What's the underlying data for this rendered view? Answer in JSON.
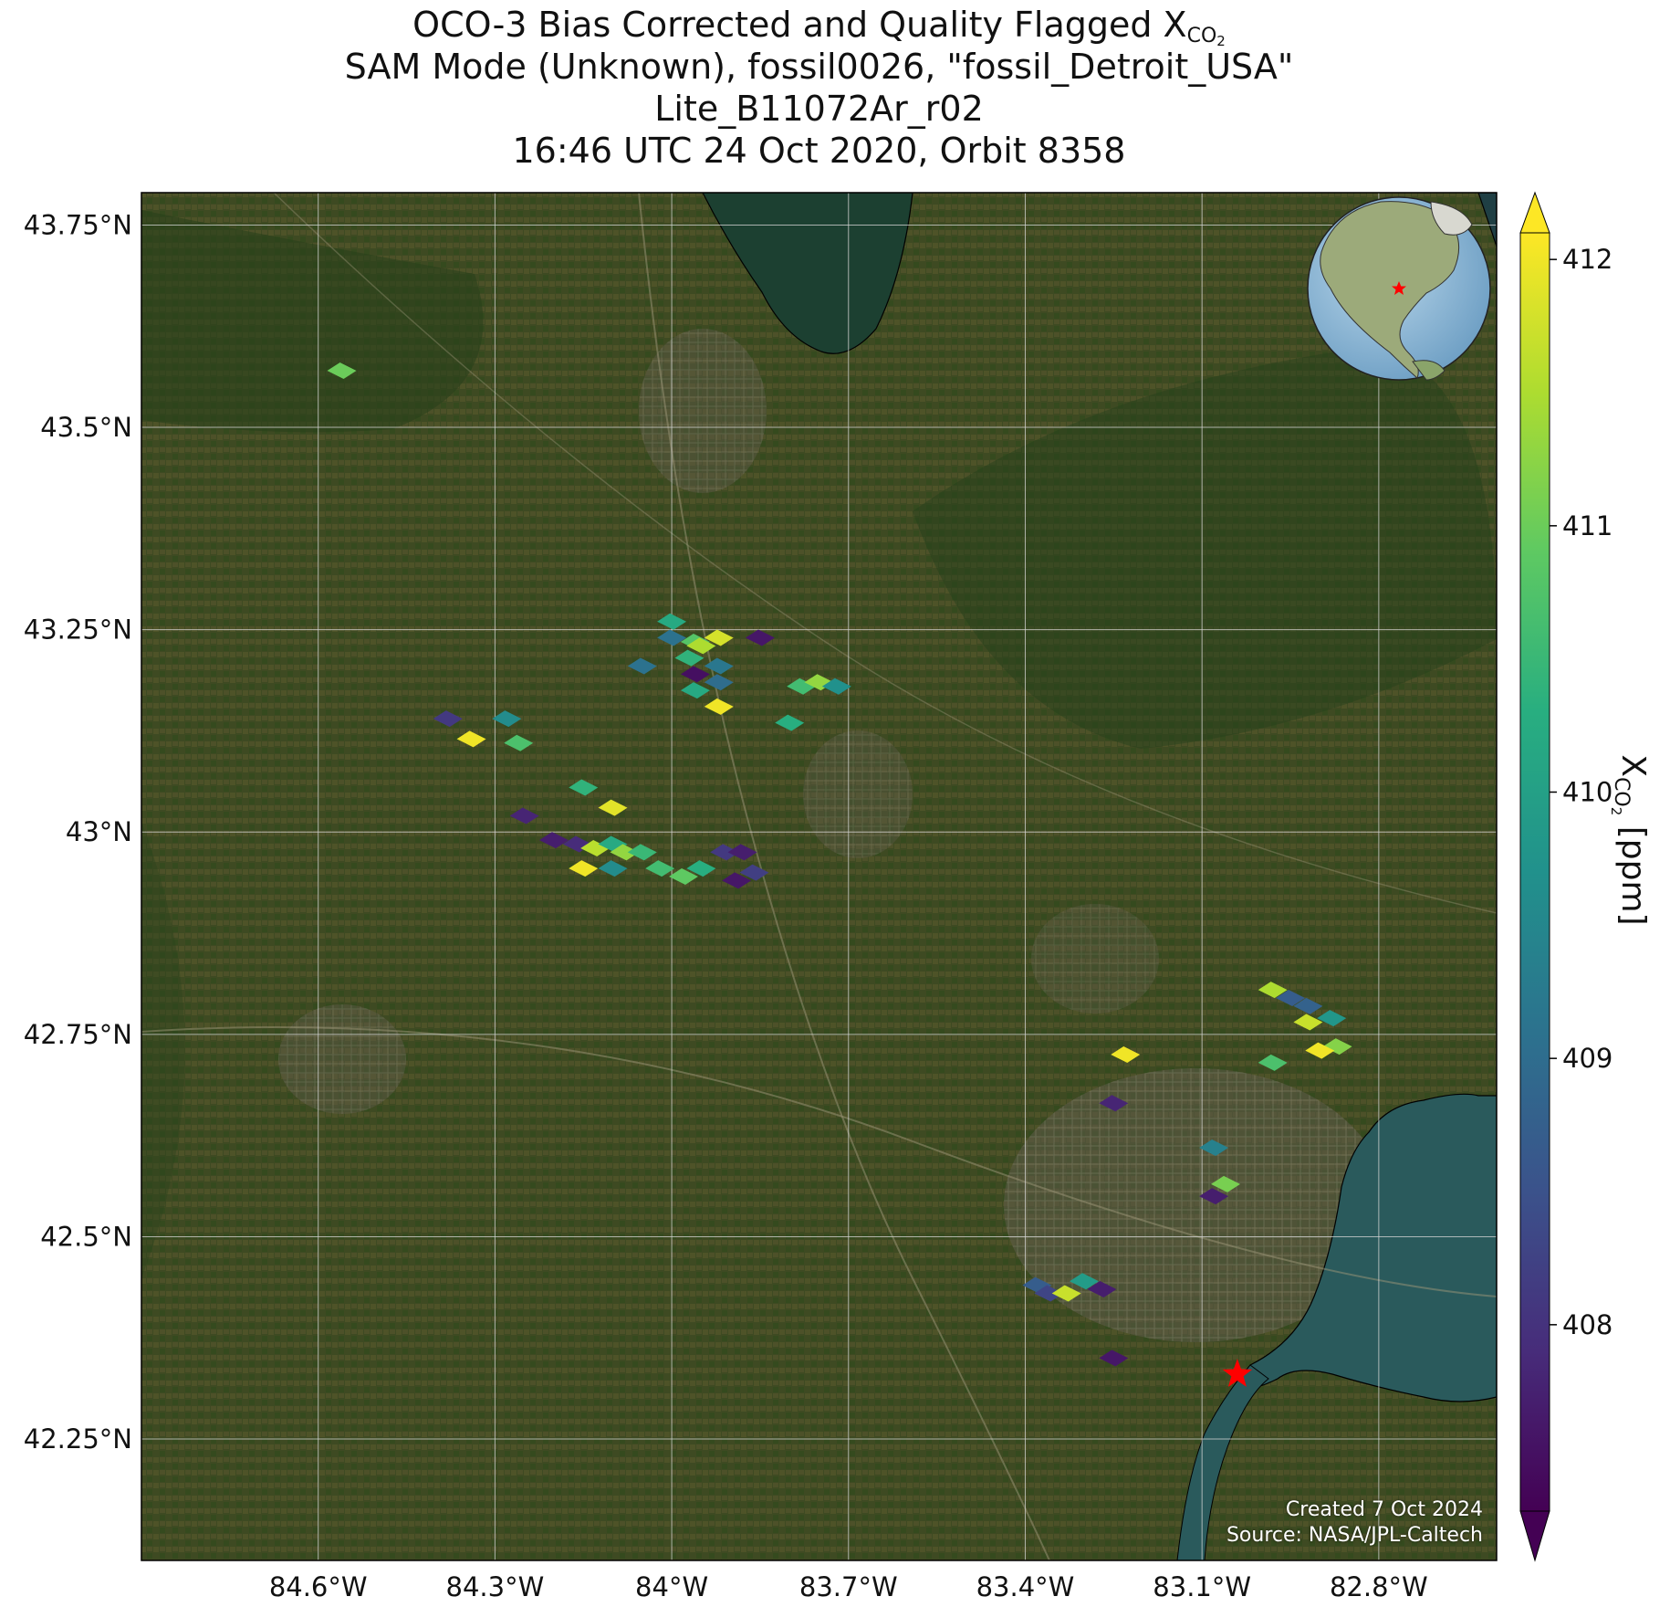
{
  "title": {
    "line1_prefix": "OCO-3 Bias Corrected and Quality Flagged X",
    "line1_sub": "CO",
    "line1_sub2": "2",
    "line2": "SAM Mode (Unknown), fossil0026, \"fossil_Detroit_USA\"",
    "line3": "Lite_B11072Ar_r02",
    "line4": "16:46 UTC 24 Oct 2020, Orbit 8358"
  },
  "colorbar": {
    "label_prefix": "X",
    "label_sub": "CO",
    "label_sub2": "2",
    "label_suffix": " [ppm]",
    "ticks": [
      "412",
      "411",
      "410",
      "409",
      "408"
    ],
    "min": 407.3,
    "max": 412.1,
    "colormap": "viridis",
    "extend": "both"
  },
  "footer": {
    "created": "Created 7 Oct 2024",
    "source": "Source: NASA/JPL-Caltech"
  },
  "axes": {
    "lat_ticks": [
      "43.75°N",
      "43.5°N",
      "43.25°N",
      "43°N",
      "42.75°N",
      "42.5°N",
      "42.25°N"
    ],
    "lon_ticks": [
      "84.6°W",
      "84.3°W",
      "84°W",
      "83.7°W",
      "83.4°W",
      "83.1°W",
      "82.8°W"
    ],
    "lat_values": [
      43.75,
      43.5,
      43.25,
      43.0,
      42.75,
      42.5,
      42.25
    ],
    "lon_values": [
      -84.6,
      -84.3,
      -84.0,
      -83.7,
      -83.4,
      -83.1,
      -82.8
    ],
    "lat_range": [
      42.1,
      43.79
    ],
    "lon_range": [
      -84.9,
      -82.6
    ]
  },
  "target": {
    "lat": 42.33,
    "lon": -83.04,
    "marker": "red-star"
  },
  "colors": {
    "map_land": "#3e4a22",
    "water_lake": "#1c4031",
    "water_erie": "#2a5a5c",
    "gridline": "#d8d8d8",
    "target_star": "#ff0000"
  },
  "soundings": [
    {
      "lat": 43.57,
      "lon": -84.56,
      "xco2": 411.0
    },
    {
      "lat": 43.26,
      "lon": -84.0,
      "xco2": 410.2
    },
    {
      "lat": 43.24,
      "lon": -84.0,
      "xco2": 409.1
    },
    {
      "lat": 43.235,
      "lon": -83.96,
      "xco2": 410.8
    },
    {
      "lat": 43.24,
      "lon": -83.92,
      "xco2": 411.8
    },
    {
      "lat": 43.23,
      "lon": -83.95,
      "xco2": 411.5
    },
    {
      "lat": 43.215,
      "lon": -83.97,
      "xco2": 410.4
    },
    {
      "lat": 43.24,
      "lon": -83.85,
      "xco2": 407.6
    },
    {
      "lat": 43.205,
      "lon": -84.05,
      "xco2": 409.1
    },
    {
      "lat": 43.205,
      "lon": -83.92,
      "xco2": 409.2
    },
    {
      "lat": 43.195,
      "lon": -83.96,
      "xco2": 407.5
    },
    {
      "lat": 43.185,
      "lon": -83.92,
      "xco2": 409.0
    },
    {
      "lat": 43.175,
      "lon": -83.96,
      "xco2": 410.2
    },
    {
      "lat": 43.18,
      "lon": -83.78,
      "xco2": 410.6
    },
    {
      "lat": 43.185,
      "lon": -83.75,
      "xco2": 411.3
    },
    {
      "lat": 43.18,
      "lon": -83.72,
      "xco2": 409.7
    },
    {
      "lat": 43.155,
      "lon": -83.92,
      "xco2": 412.0
    },
    {
      "lat": 43.135,
      "lon": -83.8,
      "xco2": 410.3
    },
    {
      "lat": 43.14,
      "lon": -84.38,
      "xco2": 408.1
    },
    {
      "lat": 43.115,
      "lon": -84.34,
      "xco2": 412.0
    },
    {
      "lat": 43.14,
      "lon": -84.28,
      "xco2": 409.6
    },
    {
      "lat": 43.11,
      "lon": -84.26,
      "xco2": 410.7
    },
    {
      "lat": 43.055,
      "lon": -84.15,
      "xco2": 410.4
    },
    {
      "lat": 43.03,
      "lon": -84.1,
      "xco2": 411.9
    },
    {
      "lat": 43.02,
      "lon": -84.25,
      "xco2": 407.8
    },
    {
      "lat": 42.99,
      "lon": -84.2,
      "xco2": 407.7
    },
    {
      "lat": 42.985,
      "lon": -84.16,
      "xco2": 407.9
    },
    {
      "lat": 42.98,
      "lon": -84.13,
      "xco2": 411.6
    },
    {
      "lat": 42.985,
      "lon": -84.1,
      "xco2": 410.2
    },
    {
      "lat": 42.975,
      "lon": -84.08,
      "xco2": 411.3
    },
    {
      "lat": 42.975,
      "lon": -84.05,
      "xco2": 410.5
    },
    {
      "lat": 42.955,
      "lon": -84.15,
      "xco2": 412.0
    },
    {
      "lat": 42.955,
      "lon": -84.1,
      "xco2": 409.6
    },
    {
      "lat": 42.955,
      "lon": -84.02,
      "xco2": 410.6
    },
    {
      "lat": 42.945,
      "lon": -83.98,
      "xco2": 410.9
    },
    {
      "lat": 42.955,
      "lon": -83.95,
      "xco2": 410.3
    },
    {
      "lat": 42.975,
      "lon": -83.91,
      "xco2": 408.1
    },
    {
      "lat": 42.975,
      "lon": -83.88,
      "xco2": 407.7
    },
    {
      "lat": 42.95,
      "lon": -83.86,
      "xco2": 408.2
    },
    {
      "lat": 42.94,
      "lon": -83.89,
      "xco2": 407.6
    },
    {
      "lat": 42.805,
      "lon": -82.98,
      "xco2": 411.5
    },
    {
      "lat": 42.795,
      "lon": -82.95,
      "xco2": 408.7
    },
    {
      "lat": 42.785,
      "lon": -82.92,
      "xco2": 408.8
    },
    {
      "lat": 42.77,
      "lon": -82.88,
      "xco2": 409.8
    },
    {
      "lat": 42.765,
      "lon": -82.92,
      "xco2": 411.7
    },
    {
      "lat": 42.735,
      "lon": -82.87,
      "xco2": 411.2
    },
    {
      "lat": 42.73,
      "lon": -82.9,
      "xco2": 412.0
    },
    {
      "lat": 42.715,
      "lon": -82.98,
      "xco2": 410.7
    },
    {
      "lat": 42.725,
      "lon": -83.23,
      "xco2": 412.0
    },
    {
      "lat": 42.665,
      "lon": -83.25,
      "xco2": 407.8
    },
    {
      "lat": 42.61,
      "lon": -83.08,
      "xco2": 409.4
    },
    {
      "lat": 42.565,
      "lon": -83.06,
      "xco2": 411.1
    },
    {
      "lat": 42.55,
      "lon": -83.08,
      "xco2": 407.7
    },
    {
      "lat": 42.44,
      "lon": -83.38,
      "xco2": 408.7
    },
    {
      "lat": 42.43,
      "lon": -83.36,
      "xco2": 408.3
    },
    {
      "lat": 42.43,
      "lon": -83.33,
      "xco2": 411.7
    },
    {
      "lat": 42.445,
      "lon": -83.3,
      "xco2": 409.9
    },
    {
      "lat": 42.435,
      "lon": -83.27,
      "xco2": 407.7
    },
    {
      "lat": 42.35,
      "lon": -83.25,
      "xco2": 407.6
    }
  ]
}
